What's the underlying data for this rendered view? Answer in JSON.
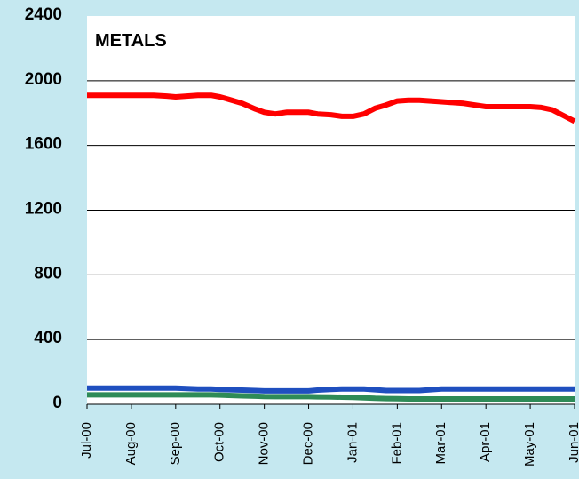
{
  "chart_data": {
    "type": "line",
    "title": "METALS",
    "xlabel": "",
    "ylabel": "",
    "ylim": [
      0,
      2400
    ],
    "yticks": [
      0,
      400,
      800,
      1200,
      1600,
      2000,
      2400
    ],
    "ytick_labels": [
      "0",
      "400",
      "800",
      "1200",
      "1600",
      "2000",
      "2400"
    ],
    "grid": "horizontal",
    "legend": "none",
    "x_labels": [
      "Jul-00",
      "Aug-00",
      "Sep-00",
      "Oct-00",
      "Nov-00",
      "Dec-00",
      "Jan-01",
      "Feb-01",
      "Mar-01",
      "Apr-01",
      "May-01",
      "Jun-01"
    ],
    "x": [
      0,
      0.5,
      1,
      1.5,
      1.8,
      2,
      2.5,
      2.8,
      3,
      3.2,
      3.5,
      3.8,
      4,
      4.25,
      4.5,
      4.75,
      5,
      5.2,
      5.5,
      5.75,
      6,
      6.25,
      6.5,
      6.75,
      7,
      7.25,
      7.5,
      7.75,
      8,
      8.5,
      9,
      9.5,
      10,
      10.25,
      10.5,
      10.75,
      11
    ],
    "series": [
      {
        "color": "#FF0000",
        "values": [
          1910,
          1910,
          1910,
          1910,
          1905,
          1900,
          1910,
          1910,
          1900,
          1885,
          1860,
          1825,
          1805,
          1795,
          1805,
          1805,
          1805,
          1795,
          1790,
          1780,
          1780,
          1795,
          1830,
          1850,
          1875,
          1880,
          1880,
          1875,
          1870,
          1860,
          1840,
          1840,
          1840,
          1835,
          1820,
          1785,
          1750
        ]
      },
      {
        "color": "#1F4FBF",
        "values": [
          100,
          100,
          100,
          100,
          100,
          100,
          95,
          95,
          92,
          90,
          88,
          85,
          83,
          83,
          83,
          83,
          83,
          88,
          92,
          95,
          95,
          95,
          90,
          85,
          85,
          85,
          85,
          90,
          95,
          95,
          95,
          95,
          95,
          95,
          95,
          95,
          95
        ]
      },
      {
        "color": "#2E8B57",
        "values": [
          58,
          58,
          58,
          58,
          58,
          58,
          58,
          58,
          57,
          55,
          52,
          50,
          48,
          47,
          47,
          47,
          47,
          46,
          45,
          44,
          43,
          40,
          37,
          35,
          34,
          33,
          33,
          33,
          33,
          33,
          33,
          33,
          33,
          33,
          33,
          33,
          33
        ]
      }
    ]
  }
}
